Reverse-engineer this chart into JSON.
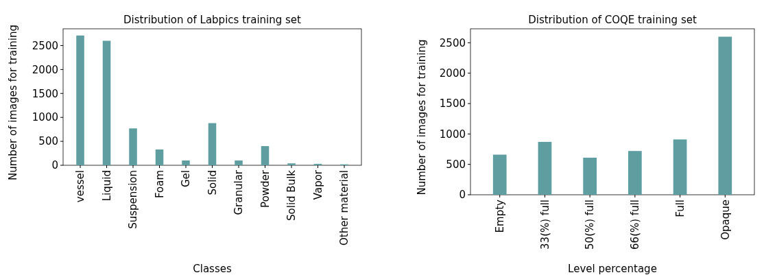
{
  "chart_data": [
    {
      "type": "bar",
      "title": "Distribution of Labpics training set",
      "xlabel": "Classes",
      "ylabel": "Number of images for training",
      "categories": [
        "vessel",
        "Liquid",
        "Suspension",
        "Foam",
        "Gel",
        "Solid",
        "Granular",
        "Powder",
        "Solid Bulk",
        "Vapor",
        "Other material"
      ],
      "values": [
        2710,
        2600,
        770,
        330,
        100,
        880,
        100,
        400,
        40,
        30,
        20
      ],
      "color": "#5f9ea0",
      "ylim": [
        0,
        2850
      ],
      "yticks": [
        0,
        500,
        1000,
        1500,
        2000,
        2500
      ]
    },
    {
      "type": "bar",
      "title": "Distribution of COQE training set",
      "xlabel": "Level percentage",
      "ylabel": "Number of images for training",
      "categories": [
        "Empty",
        "33(%) full",
        "50(%) full",
        "66(%) full",
        "Full",
        "Opaque"
      ],
      "values": [
        660,
        870,
        610,
        720,
        910,
        2600
      ],
      "color": "#5f9ea0",
      "ylim": [
        0,
        2730
      ],
      "yticks": [
        0,
        500,
        1000,
        1500,
        2000,
        2500
      ]
    }
  ]
}
